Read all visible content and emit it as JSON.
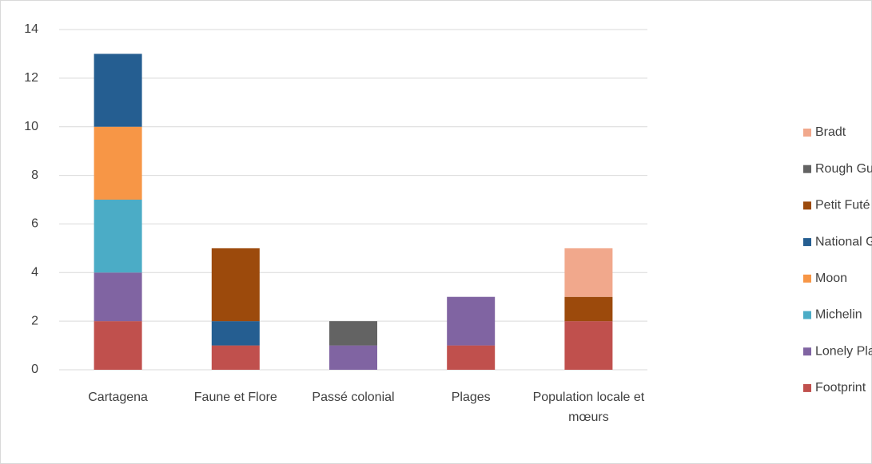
{
  "chart_data": {
    "type": "bar",
    "stacked": true,
    "categories": [
      "Cartagena",
      "Faune et Flore",
      "Passé colonial",
      "Plages",
      "Population locale et mœurs"
    ],
    "series": [
      {
        "name": "Footprint",
        "color": "#c0504d",
        "values": [
          2,
          1,
          0,
          1,
          2
        ]
      },
      {
        "name": "Lonely Planet",
        "color": "#8064a2",
        "values": [
          2,
          0,
          1,
          2,
          0
        ]
      },
      {
        "name": "Michelin",
        "color": "#4bacc6",
        "values": [
          3,
          0,
          0,
          0,
          0
        ]
      },
      {
        "name": "Moon",
        "color": "#f79646",
        "values": [
          3,
          0,
          0,
          0,
          0
        ]
      },
      {
        "name": "National Geographic",
        "color": "#255e91",
        "values": [
          3,
          1,
          0,
          0,
          0
        ]
      },
      {
        "name": "Petit Futé",
        "color": "#9c4a0c",
        "values": [
          0,
          3,
          0,
          0,
          1
        ]
      },
      {
        "name": "Rough Guide",
        "color": "#636363",
        "values": [
          0,
          0,
          1,
          0,
          0
        ]
      },
      {
        "name": "Bradt",
        "color": "#f1a88c",
        "values": [
          0,
          0,
          0,
          0,
          2
        ]
      }
    ],
    "ylim": [
      0,
      14
    ],
    "yticks": [
      0,
      2,
      4,
      6,
      8,
      10,
      12,
      14
    ],
    "grid": true,
    "legend": "right"
  }
}
